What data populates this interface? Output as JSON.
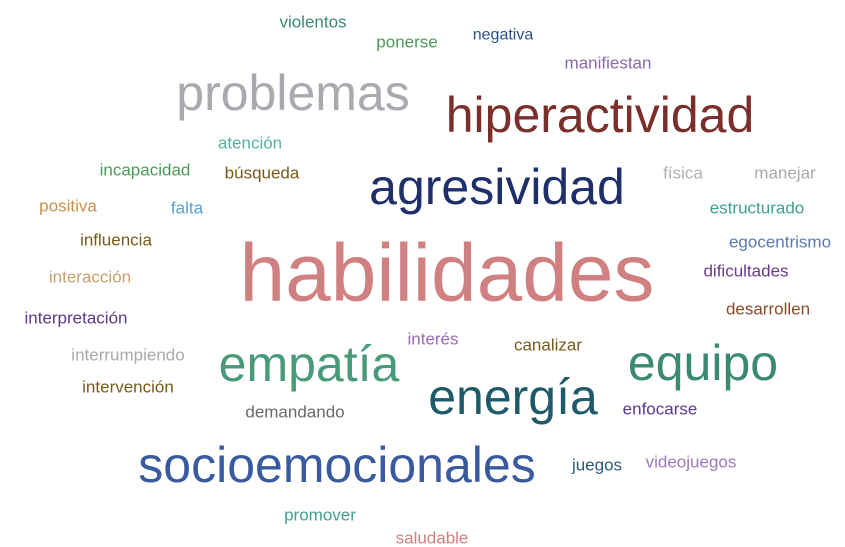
{
  "words": [
    {
      "text": "violentos",
      "color": "#3a8a70"
    },
    {
      "text": "ponerse",
      "color": "#4a9a5a"
    },
    {
      "text": "negativa",
      "color": "#2b4f8a"
    },
    {
      "text": "manifiestan",
      "color": "#8a6aaa"
    },
    {
      "text": "problemas",
      "color": "#a9a9b0"
    },
    {
      "text": "hiperactividad",
      "color": "#7a2f2a"
    },
    {
      "text": "atención",
      "color": "#5ab0a0"
    },
    {
      "text": "incapacidad",
      "color": "#4a9a5a"
    },
    {
      "text": "búsqueda",
      "color": "#7a5a1a"
    },
    {
      "text": "agresividad",
      "color": "#1f2f6a"
    },
    {
      "text": "física",
      "color": "#b0b0b0"
    },
    {
      "text": "manejar",
      "color": "#a9a9a9"
    },
    {
      "text": "positiva",
      "color": "#c8904a"
    },
    {
      "text": "falta",
      "color": "#5aa0d0"
    },
    {
      "text": "estructurado",
      "color": "#40a090"
    },
    {
      "text": "influencia",
      "color": "#7a5a1a"
    },
    {
      "text": "egocentrismo",
      "color": "#5a7ab0"
    },
    {
      "text": "habilidades",
      "color": "#d08080"
    },
    {
      "text": "interacción",
      "color": "#c8a070"
    },
    {
      "text": "dificultades",
      "color": "#6a3a8a"
    },
    {
      "text": "desarrollen",
      "color": "#8a4a2a"
    },
    {
      "text": "interpretación",
      "color": "#5a3a8a"
    },
    {
      "text": "interés",
      "color": "#9a6aba"
    },
    {
      "text": "canalizar",
      "color": "#7a5a1a"
    },
    {
      "text": "empatía",
      "color": "#4a9a7a"
    },
    {
      "text": "equipo",
      "color": "#3a8a70"
    },
    {
      "text": "interrumpiendo",
      "color": "#a9a9a9"
    },
    {
      "text": "intervención",
      "color": "#7a5a1a"
    },
    {
      "text": "energía",
      "color": "#1f5a6a"
    },
    {
      "text": "demandando",
      "color": "#6a6a6a"
    },
    {
      "text": "enfocarse",
      "color": "#5a3a8a"
    },
    {
      "text": "socioemocionales",
      "color": "#3a5aa0"
    },
    {
      "text": "juegos",
      "color": "#2a5a7a"
    },
    {
      "text": "videojuegos",
      "color": "#9a7aba"
    },
    {
      "text": "promover",
      "color": "#40a090"
    },
    {
      "text": "saludable",
      "color": "#d08080"
    }
  ]
}
